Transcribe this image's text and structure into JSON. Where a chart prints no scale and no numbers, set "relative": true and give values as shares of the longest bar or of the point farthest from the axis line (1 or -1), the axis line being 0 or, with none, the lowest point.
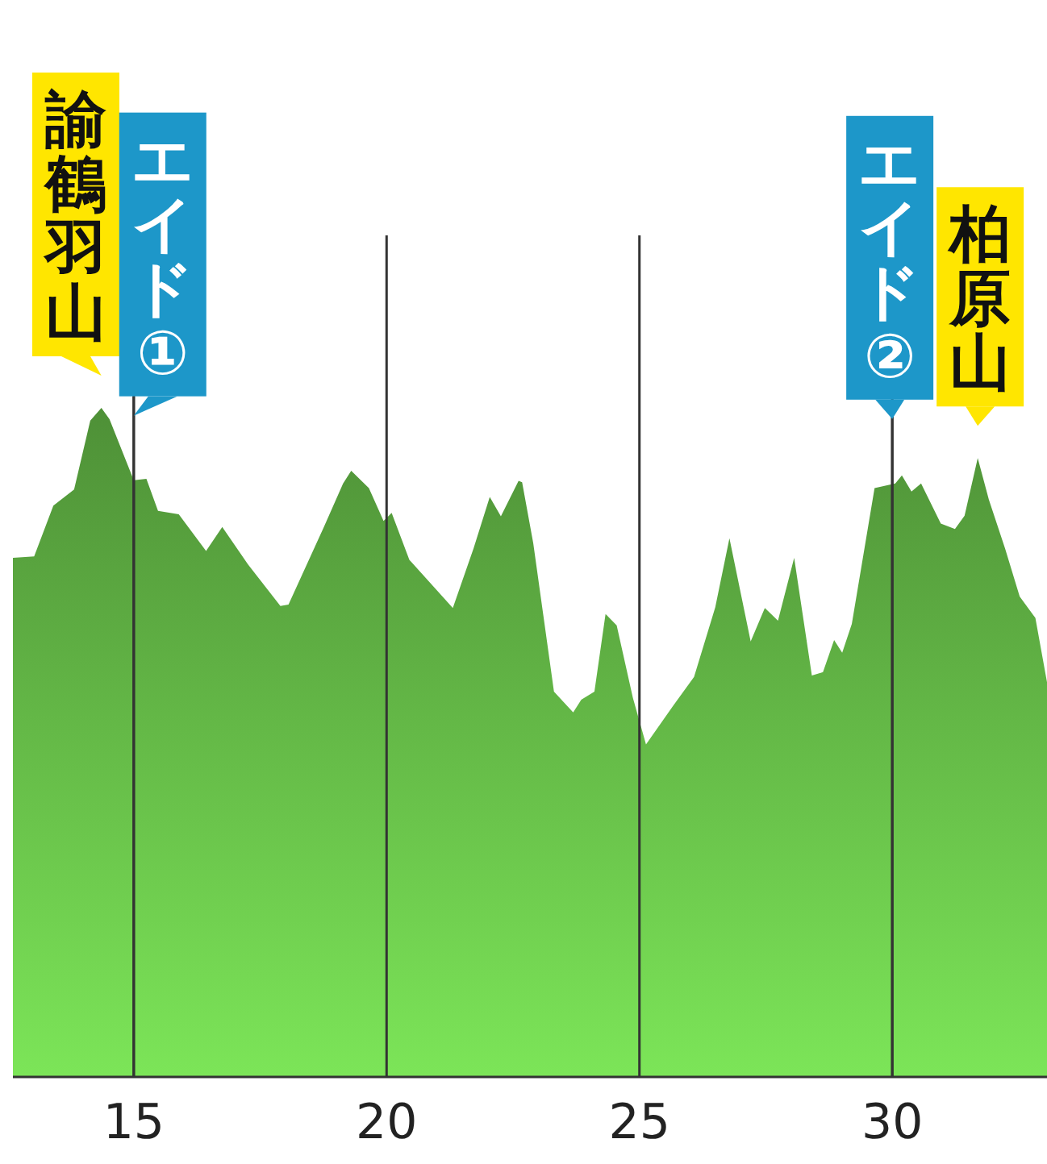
{
  "chart_data": {
    "type": "area",
    "relative": true,
    "grid": "x",
    "xlim": [
      12.61,
      33.06
    ],
    "xticks": [
      15,
      20,
      25,
      30
    ],
    "series": [
      {
        "color": "#5aa640",
        "x": [
          12.61,
          13.03,
          13.41,
          13.82,
          14.14,
          14.36,
          14.52,
          15.0,
          15.25,
          15.48,
          15.89,
          16.43,
          16.75,
          17.26,
          17.9,
          18.06,
          18.76,
          19.14,
          19.3,
          19.65,
          19.94,
          20.1,
          20.45,
          21.31,
          21.72,
          22.04,
          22.26,
          22.61,
          22.68,
          22.9,
          23.31,
          23.69,
          23.85,
          24.11,
          24.33,
          24.55,
          24.87,
          25.13,
          25.67,
          26.08,
          26.5,
          26.78,
          27.2,
          27.48,
          27.74,
          28.06,
          28.41,
          28.63,
          28.85,
          29.01,
          29.2,
          29.65,
          30.06,
          30.19,
          30.38,
          30.57,
          30.96,
          31.24,
          31.43,
          31.69,
          31.91,
          32.23,
          32.52,
          32.83,
          33.06
        ],
        "values": [
          0.776,
          0.778,
          0.854,
          0.878,
          0.981,
          1.0,
          0.983,
          0.892,
          0.894,
          0.846,
          0.841,
          0.786,
          0.822,
          0.766,
          0.704,
          0.706,
          0.822,
          0.887,
          0.906,
          0.88,
          0.831,
          0.843,
          0.773,
          0.701,
          0.79,
          0.867,
          0.838,
          0.891,
          0.889,
          0.798,
          0.576,
          0.545,
          0.564,
          0.576,
          0.692,
          0.675,
          0.567,
          0.497,
          0.555,
          0.598,
          0.702,
          0.805,
          0.651,
          0.701,
          0.682,
          0.776,
          0.6,
          0.605,
          0.653,
          0.634,
          0.677,
          0.88,
          0.887,
          0.899,
          0.875,
          0.887,
          0.827,
          0.819,
          0.839,
          0.925,
          0.863,
          0.79,
          0.718,
          0.686,
          0.59
        ]
      }
    ],
    "annotations": [
      {
        "text": "諭鶴羽山",
        "x": 14.36,
        "y": 1.0
      },
      {
        "text": "エイド①",
        "x": 15,
        "y": 0.892
      },
      {
        "text": "エイド②",
        "x": 30,
        "y": 0.887
      },
      {
        "text": "柏原山",
        "x": 31.69,
        "y": 0.925
      }
    ]
  }
}
